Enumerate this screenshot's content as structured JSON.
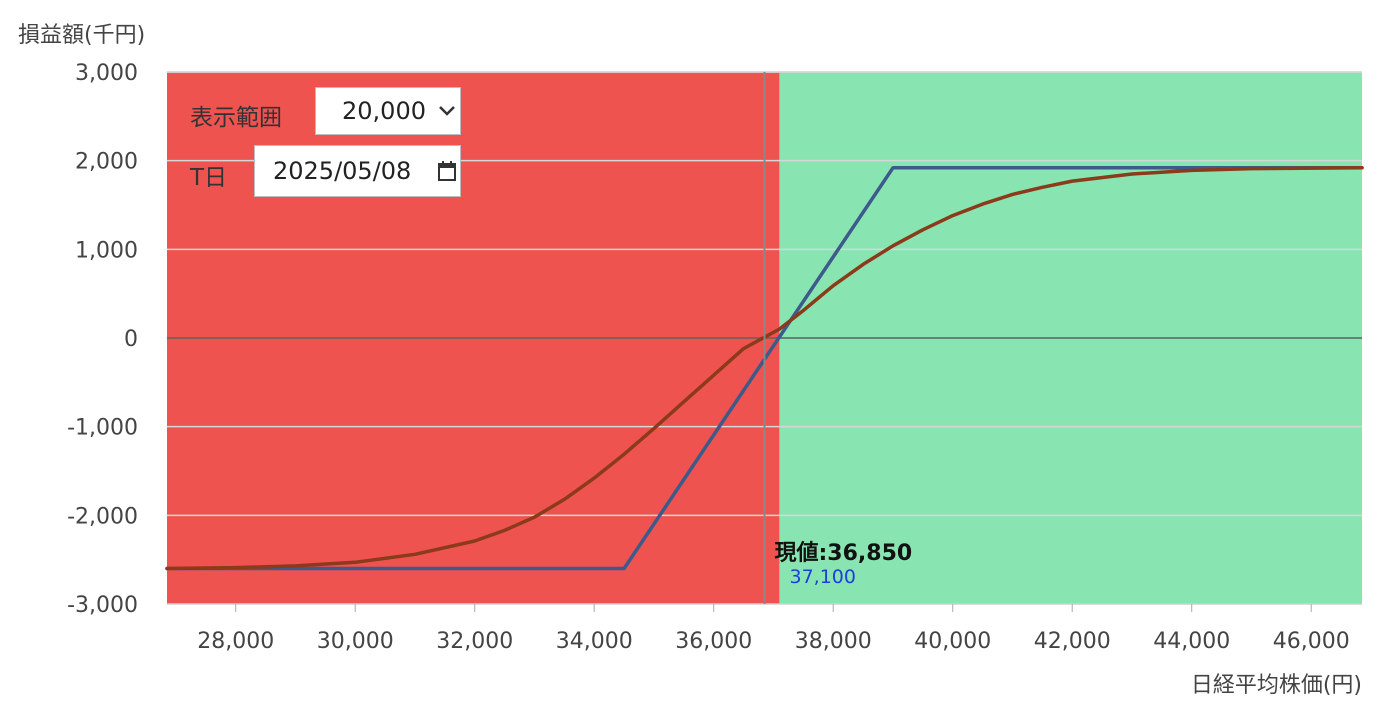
{
  "controls": {
    "range_label": "表示範囲",
    "range_value": "20,000",
    "date_label": "T日",
    "date_value": "2025/05/08"
  },
  "chart_data": {
    "type": "line",
    "ylabel": "損益額(千円)",
    "xlabel": "日経平均株価(円)",
    "xlim": [
      26850,
      46850
    ],
    "ylim": [
      -3000,
      3000
    ],
    "x_ticks": [
      28000,
      30000,
      32000,
      34000,
      36000,
      38000,
      40000,
      42000,
      44000,
      46000
    ],
    "x_tick_labels": [
      "28,000",
      "30,000",
      "32,000",
      "34,000",
      "36,000",
      "38,000",
      "40,000",
      "42,000",
      "44,000",
      "46,000"
    ],
    "y_ticks": [
      3000,
      2000,
      1000,
      0,
      -1000,
      -2000,
      -3000
    ],
    "y_tick_labels": [
      "3,000",
      "2,000",
      "1,000",
      "0",
      "-1,000",
      "-2,000",
      "-3,000"
    ],
    "grid": true,
    "loss_region_color": "#ef5350",
    "profit_region_color": "#88e5b2",
    "breakeven": 37100,
    "breakeven_label": "37,100",
    "current_value": 36850,
    "current_label": "現値:36,850",
    "series": [
      {
        "color": "#3d5a8a",
        "points": [
          [
            26850,
            -2600
          ],
          [
            34500,
            -2600
          ],
          [
            39000,
            1920
          ],
          [
            46850,
            1920
          ]
        ]
      },
      {
        "color": "#8b3a1a",
        "points": [
          [
            26850,
            -2600
          ],
          [
            28000,
            -2590
          ],
          [
            29000,
            -2570
          ],
          [
            30000,
            -2530
          ],
          [
            31000,
            -2440
          ],
          [
            32000,
            -2290
          ],
          [
            32500,
            -2170
          ],
          [
            33000,
            -2020
          ],
          [
            33500,
            -1820
          ],
          [
            34000,
            -1580
          ],
          [
            34500,
            -1310
          ],
          [
            35000,
            -1020
          ],
          [
            35500,
            -720
          ],
          [
            36000,
            -420
          ],
          [
            36500,
            -120
          ],
          [
            37100,
            100
          ],
          [
            37500,
            310
          ],
          [
            38000,
            590
          ],
          [
            38500,
            830
          ],
          [
            39000,
            1040
          ],
          [
            39500,
            1220
          ],
          [
            40000,
            1380
          ],
          [
            40500,
            1510
          ],
          [
            41000,
            1620
          ],
          [
            41500,
            1700
          ],
          [
            42000,
            1770
          ],
          [
            43000,
            1850
          ],
          [
            44000,
            1890
          ],
          [
            45000,
            1910
          ],
          [
            46850,
            1920
          ]
        ]
      }
    ]
  }
}
